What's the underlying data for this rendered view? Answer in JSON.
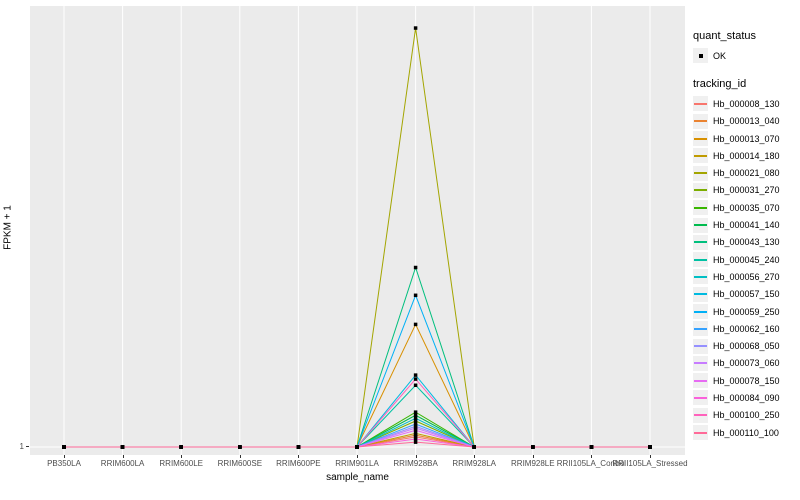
{
  "figure": {
    "panel_bg": "#EBEBEB",
    "grid_color": "#FFFFFF",
    "tick_color": "#333333",
    "tick_label_color": "#4D4D4D",
    "point_color": "#000000"
  },
  "chart_data": {
    "type": "line",
    "title": "",
    "xlabel": "sample_name",
    "ylabel": "FPKM + 1",
    "legend_position": "right",
    "grid": "vertical gridline per category, horizontal gridline at y=1",
    "marker": "black-square",
    "x_categories": [
      "PB350LA",
      "RRIM600LA",
      "RRIM600LE",
      "RRIM600SE",
      "RRIM600PE",
      "RRIM901LA",
      "RRIM928BA",
      "RRIM928LA",
      "RRIM928LE",
      "RRII105LA_Control",
      "RRII105LA_Stressed"
    ],
    "y_tick_labels": [
      "1"
    ],
    "baseline_value": 1,
    "peak_category": "RRIM928BA",
    "peak_category_index": 6,
    "series_note": "all series flat at FPKM+1 = 1 for every sample except a single peak at RRIM928BA; peak_height_fraction is the peak height as a fraction of full panel height above the y=1 line",
    "series": [
      {
        "name": "Hb_000008_130",
        "color": "#F8766D",
        "peak_height_fraction": 0.023
      },
      {
        "name": "Hb_000013_040",
        "color": "#EA8331",
        "peak_height_fraction": 0.027
      },
      {
        "name": "Hb_000013_070",
        "color": "#D89000",
        "peak_height_fraction": 0.278
      },
      {
        "name": "Hb_000014_180",
        "color": "#C09B00",
        "peak_height_fraction": 0.031
      },
      {
        "name": "Hb_000021_080",
        "color": "#A3A500",
        "peak_height_fraction": 0.95
      },
      {
        "name": "Hb_000031_270",
        "color": "#7CAE00",
        "peak_height_fraction": 0.059
      },
      {
        "name": "Hb_000035_070",
        "color": "#39B600",
        "peak_height_fraction": 0.079
      },
      {
        "name": "Hb_000041_140",
        "color": "#00BB4E",
        "peak_height_fraction": 0.072
      },
      {
        "name": "Hb_000043_130",
        "color": "#00BF7D",
        "peak_height_fraction": 0.407
      },
      {
        "name": "Hb_000045_240",
        "color": "#00C1A3",
        "peak_height_fraction": 0.14
      },
      {
        "name": "Hb_000056_270",
        "color": "#00BFC4",
        "peak_height_fraction": 0.065
      },
      {
        "name": "Hb_000057_150",
        "color": "#00BAE0",
        "peak_height_fraction": 0.163
      },
      {
        "name": "Hb_000059_250",
        "color": "#00B0F6",
        "peak_height_fraction": 0.344
      },
      {
        "name": "Hb_000062_160",
        "color": "#35A2FF",
        "peak_height_fraction": 0.052
      },
      {
        "name": "Hb_000068_050",
        "color": "#9590FF",
        "peak_height_fraction": 0.047
      },
      {
        "name": "Hb_000073_060",
        "color": "#C77CFF",
        "peak_height_fraction": 0.043
      },
      {
        "name": "Hb_000078_150",
        "color": "#E76BF3",
        "peak_height_fraction": 0.038
      },
      {
        "name": "Hb_000084_090",
        "color": "#FA62DB",
        "peak_height_fraction": 0.018
      },
      {
        "name": "Hb_000100_250",
        "color": "#FF62BC",
        "peak_height_fraction": 0.154
      },
      {
        "name": "Hb_000110_100",
        "color": "#FF6A98",
        "peak_height_fraction": 0.011
      }
    ]
  },
  "legend": {
    "quant_status_title": "quant_status",
    "quant_status_items": [
      {
        "label": "OK"
      }
    ],
    "tracking_id_title": "tracking_id"
  }
}
